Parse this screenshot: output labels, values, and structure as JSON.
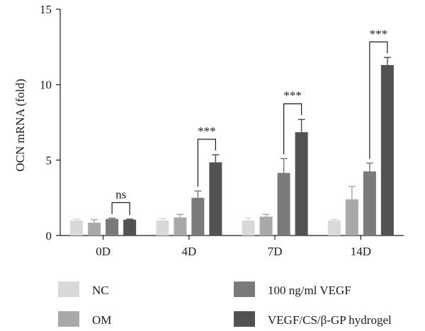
{
  "chart_data": {
    "type": "bar",
    "title": "",
    "xlabel": "",
    "ylabel": "OCN mRNA (fold)",
    "ylim": [
      0,
      15
    ],
    "yticks": [
      0,
      5,
      10,
      15
    ],
    "categories": [
      "0D",
      "4D",
      "7D",
      "14D"
    ],
    "series": [
      {
        "name": "NC",
        "color": "#d9d9d9",
        "values": [
          1.0,
          1.0,
          1.0,
          1.0
        ],
        "errors": [
          0.1,
          0.12,
          0.15,
          0.08
        ]
      },
      {
        "name": "OM",
        "color": "#a9a9a9",
        "values": [
          0.85,
          1.2,
          1.25,
          2.4
        ],
        "errors": [
          0.2,
          0.2,
          0.15,
          0.85
        ]
      },
      {
        "name": "100 ng/ml VEGF",
        "color": "#7a7a7a",
        "values": [
          1.1,
          2.5,
          4.15,
          4.25
        ],
        "errors": [
          0.05,
          0.45,
          0.95,
          0.55
        ]
      },
      {
        "name": "VEGF/CS/β-GP hydrogel",
        "color": "#525252",
        "values": [
          1.05,
          4.85,
          6.85,
          11.3
        ],
        "errors": [
          0.03,
          0.5,
          0.85,
          0.5
        ]
      }
    ],
    "annotations": [
      {
        "category": "0D",
        "label": "ns"
      },
      {
        "category": "4D",
        "label": "***"
      },
      {
        "category": "7D",
        "label": "***"
      },
      {
        "category": "14D",
        "label": "***"
      }
    ],
    "legend_position": "bottom",
    "grid": false
  }
}
